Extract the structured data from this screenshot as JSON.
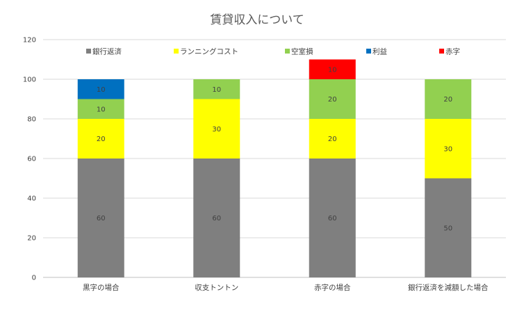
{
  "chart_data": {
    "type": "bar",
    "stacked": true,
    "title": "賃貸収入について",
    "xlabel": "",
    "ylabel": "",
    "categories": [
      "黒字の場合",
      "収支トントン",
      "赤字の場合",
      "銀行返済を減額した場合"
    ],
    "ylim": [
      0,
      120
    ],
    "yticks": [
      0,
      20,
      40,
      60,
      80,
      100,
      120
    ],
    "grid": true,
    "legend_position": "top",
    "series": [
      {
        "name": "銀行返済",
        "color": "#7f7f7f",
        "values": [
          60,
          60,
          60,
          50
        ]
      },
      {
        "name": "ランニングコスト",
        "color": "#ffff00",
        "values": [
          20,
          30,
          20,
          30
        ]
      },
      {
        "name": "空室損",
        "color": "#92d050",
        "values": [
          10,
          10,
          20,
          20
        ]
      },
      {
        "name": "利益",
        "color": "#0070c0",
        "values": [
          10,
          0,
          0,
          0
        ]
      },
      {
        "name": "赤字",
        "color": "#ff0000",
        "values": [
          0,
          0,
          10,
          0
        ]
      }
    ]
  }
}
